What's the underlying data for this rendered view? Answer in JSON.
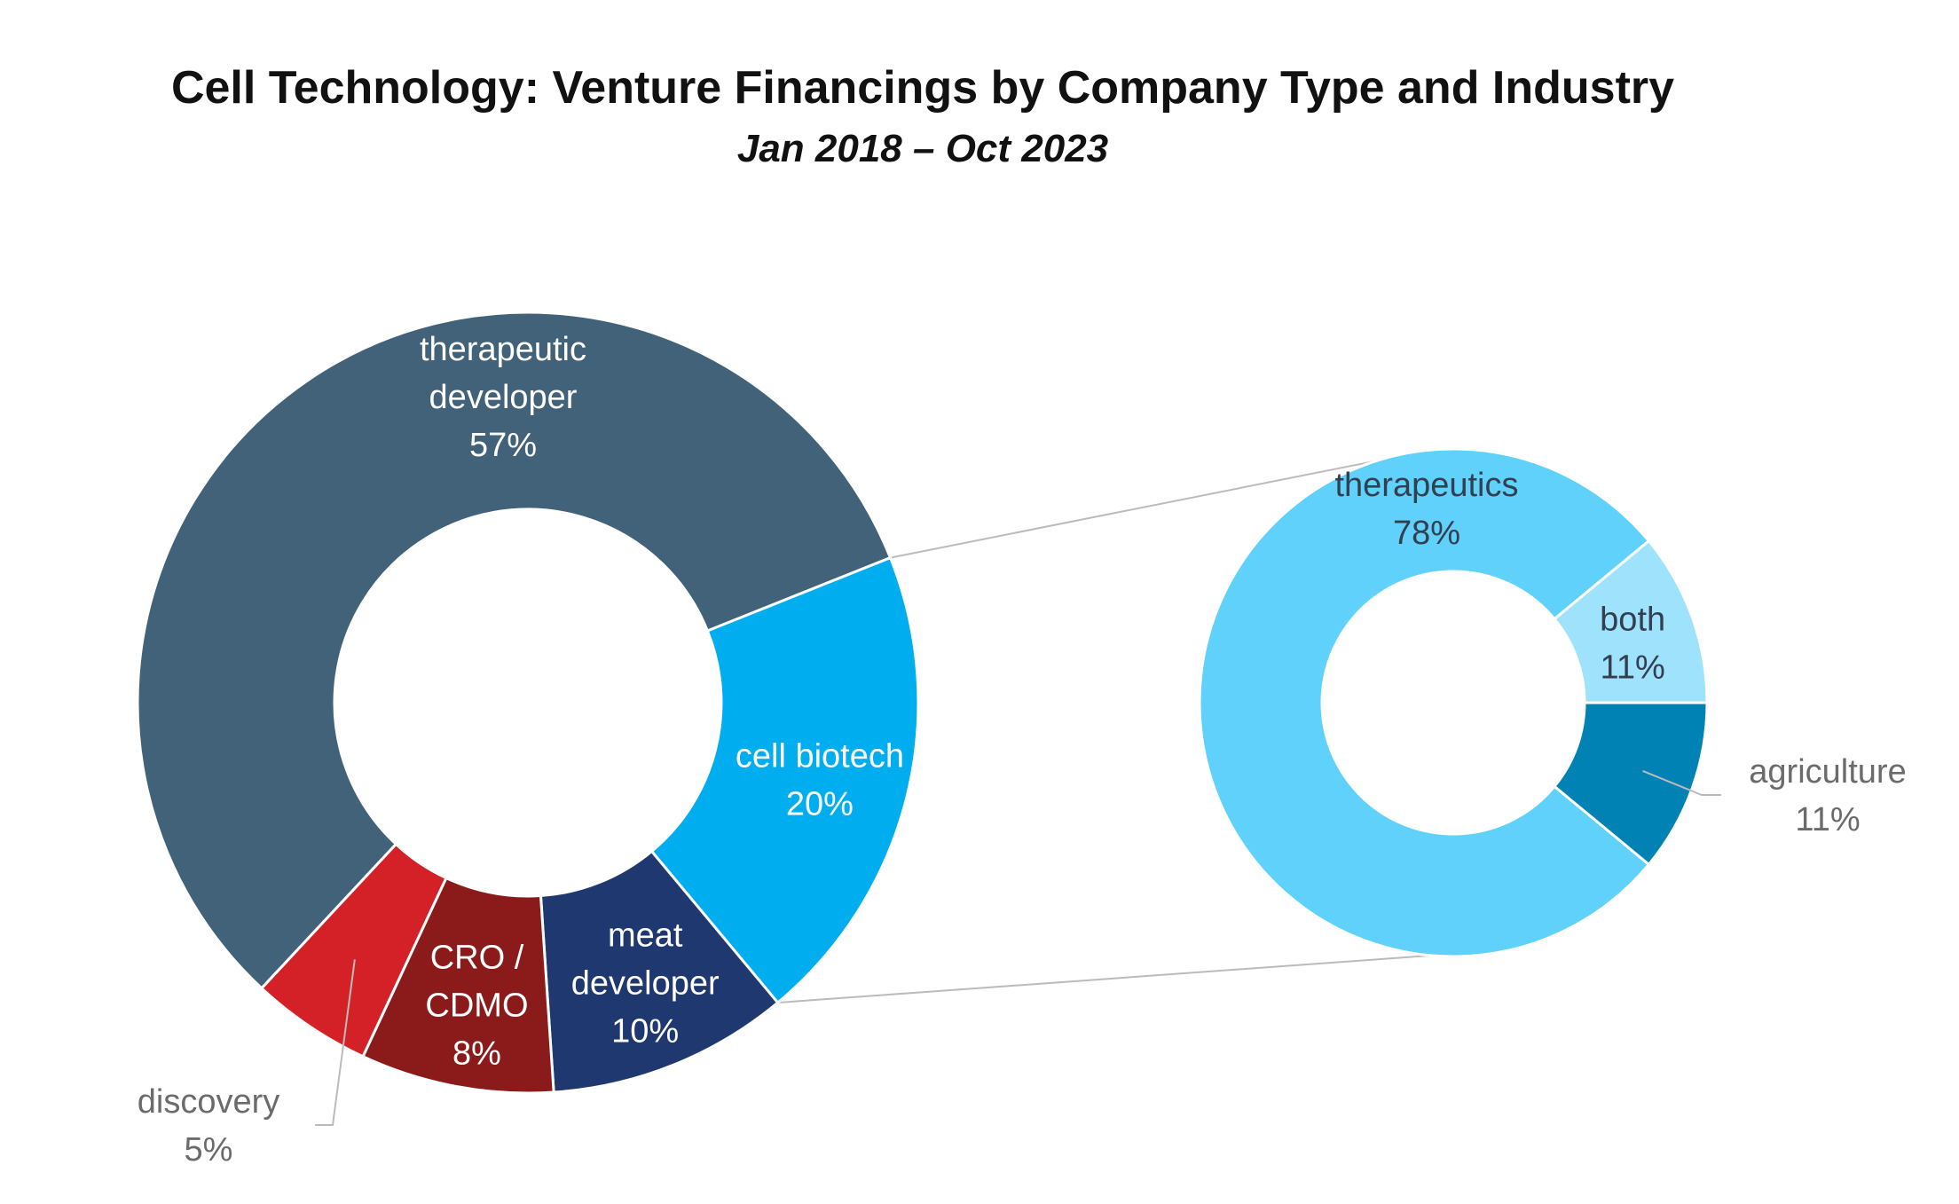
{
  "chart_data": [
    {
      "type": "pie",
      "variant": "donut",
      "title": "Cell Technology: Venture Financings by Company Type and Industry",
      "subtitle": "Jan 2018 – Oct 2023",
      "slices": [
        {
          "label_lines": [
            "therapeutic",
            "developer",
            "57%"
          ],
          "name": "therapeutic developer",
          "value": 57,
          "color": "#42627A"
        },
        {
          "label_lines": [
            "cell biotech",
            "20%"
          ],
          "name": "cell biotech",
          "value": 20,
          "color": "#00AEEF"
        },
        {
          "label_lines": [
            "meat",
            "developer",
            "10%"
          ],
          "name": "meat developer",
          "value": 10,
          "color": "#1F3870"
        },
        {
          "label_lines": [
            "CRO /",
            "CDMO",
            "8%"
          ],
          "name": "CRO / CDMO",
          "value": 8,
          "color": "#8B1A1A"
        },
        {
          "label_lines": [
            "discovery",
            "5%"
          ],
          "name": "discovery",
          "value": 5,
          "color": "#D42128"
        }
      ]
    },
    {
      "type": "pie",
      "variant": "donut",
      "breakdown_of": "cell biotech",
      "slices": [
        {
          "label_lines": [
            "therapeutics",
            "78%"
          ],
          "name": "therapeutics",
          "value": 78,
          "color": "#5FD1FA"
        },
        {
          "label_lines": [
            "both",
            "11%"
          ],
          "name": "both",
          "value": 11,
          "color": "#9FE2FB"
        },
        {
          "label_lines": [
            "agriculture",
            "11%"
          ],
          "name": "agriculture",
          "value": 11,
          "color": "#0083B4"
        }
      ]
    }
  ],
  "colors": {
    "label_light": "#FFFFFF",
    "label_dark": "#333F50",
    "label_grey": "#6B6B6B",
    "leader_line": "#BBBBBB"
  }
}
